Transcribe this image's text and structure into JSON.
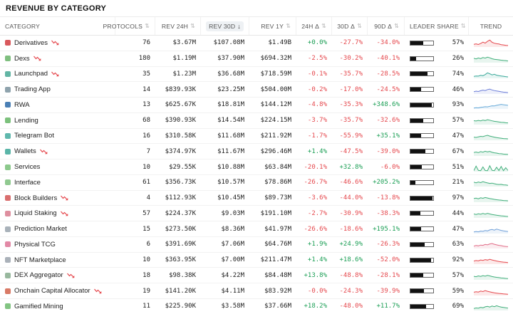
{
  "title": "REVENUE BY CATEGORY",
  "colors": {
    "positive": "#1a9e54",
    "negative": "#e5484d",
    "leader_fill": "#111111"
  },
  "icons": {
    "sort": "⇅",
    "sort_active": "↓",
    "trend_down_badge": "red-zigzag-down-arrow"
  },
  "table": {
    "columns": [
      {
        "label": "CATEGORY",
        "sort": "none"
      },
      {
        "label": "PROTOCOLS",
        "sort": "sortable"
      },
      {
        "label": "REV 24H",
        "sort": "sortable"
      },
      {
        "label": "REV 30D",
        "sort": "desc"
      },
      {
        "label": "REV 1Y",
        "sort": "sortable"
      },
      {
        "label": "24H Δ",
        "sort": "sortable"
      },
      {
        "label": "30D Δ",
        "sort": "sortable"
      },
      {
        "label": "90D Δ",
        "sort": "sortable"
      },
      {
        "label": "LEADER SHARE",
        "sort": "sortable"
      },
      {
        "label": "TREND",
        "sort": "none"
      }
    ],
    "rows": [
      {
        "category": "Derivatives",
        "down_badge": true,
        "icon_color": "#d9595c",
        "protocols": 76,
        "rev_24h": "$3.67M",
        "rev_30d": "$107.08M",
        "rev_1y": "$1.49B",
        "chg_24h": "+0.0%",
        "chg_30d": "-27.7%",
        "chg_90d": "-34.0%",
        "leader_share": 57,
        "trend_color": "#e5484d",
        "trend": [
          35,
          40,
          32,
          45,
          62,
          50,
          72,
          88,
          60,
          48,
          42,
          38,
          30,
          26,
          22,
          20
        ]
      },
      {
        "category": "Dexs",
        "down_badge": true,
        "icon_color": "#7fbf7f",
        "protocols": 180,
        "rev_24h": "$1.19M",
        "rev_30d": "$37.90M",
        "rev_1y": "$694.32M",
        "chg_24h": "-2.5%",
        "chg_30d": "-30.2%",
        "chg_90d": "-40.1%",
        "leader_share": 26,
        "trend_color": "#3fae7a",
        "trend": [
          55,
          48,
          60,
          52,
          65,
          58,
          70,
          62,
          50,
          44,
          40,
          36,
          32,
          28,
          26,
          22
        ]
      },
      {
        "category": "Launchpad",
        "down_badge": true,
        "icon_color": "#62b5a4",
        "protocols": 35,
        "rev_24h": "$1.23M",
        "rev_30d": "$36.68M",
        "rev_1y": "$718.59M",
        "chg_24h": "-0.1%",
        "chg_30d": "-35.7%",
        "chg_90d": "-28.5%",
        "leader_share": 74,
        "trend_color": "#3aa99a",
        "trend": [
          25,
          30,
          28,
          38,
          34,
          48,
          70,
          58,
          44,
          52,
          40,
          34,
          30,
          26,
          22,
          18
        ]
      },
      {
        "category": "Trading App",
        "down_badge": false,
        "icon_color": "#8fa3ad",
        "protocols": 14,
        "rev_24h": "$839.93K",
        "rev_30d": "$23.25M",
        "rev_1y": "$504.00M",
        "chg_24h": "-0.2%",
        "chg_30d": "-17.0%",
        "chg_90d": "-24.5%",
        "leader_share": 46,
        "trend_color": "#6e7fd8",
        "trend": [
          30,
          36,
          32,
          42,
          50,
          44,
          56,
          62,
          52,
          44,
          38,
          34,
          28,
          24,
          22,
          18
        ]
      },
      {
        "category": "RWA",
        "down_badge": false,
        "icon_color": "#4a7fb5",
        "protocols": 13,
        "rev_24h": "$625.67K",
        "rev_30d": "$18.81M",
        "rev_1y": "$144.12M",
        "chg_24h": "-4.8%",
        "chg_30d": "-35.3%",
        "chg_90d": "+348.6%",
        "leader_share": 93,
        "trend_color": "#64a8d8",
        "trend": [
          12,
          16,
          14,
          20,
          24,
          28,
          26,
          34,
          40,
          38,
          46,
          52,
          58,
          54,
          50,
          46
        ]
      },
      {
        "category": "Lending",
        "down_badge": false,
        "icon_color": "#7cc17c",
        "protocols": 68,
        "rev_24h": "$390.93K",
        "rev_30d": "$14.54M",
        "rev_1y": "$224.15M",
        "chg_24h": "-3.7%",
        "chg_30d": "-35.7%",
        "chg_90d": "-32.6%",
        "leader_share": 57,
        "trend_color": "#3fae7a",
        "trend": [
          50,
          46,
          54,
          48,
          58,
          52,
          62,
          56,
          48,
          42,
          38,
          34,
          30,
          28,
          24,
          22
        ]
      },
      {
        "category": "Telegram Bot",
        "down_badge": false,
        "icon_color": "#5fb8ad",
        "protocols": 16,
        "rev_24h": "$310.58K",
        "rev_30d": "$11.68M",
        "rev_1y": "$211.92M",
        "chg_24h": "-1.7%",
        "chg_30d": "-55.9%",
        "chg_90d": "+35.1%",
        "leader_share": 47,
        "trend_color": "#3fae7a",
        "trend": [
          40,
          36,
          44,
          50,
          46,
          56,
          64,
          54,
          46,
          40,
          34,
          30,
          26,
          22,
          20,
          18
        ]
      },
      {
        "category": "Wallets",
        "down_badge": true,
        "icon_color": "#5ab5a8",
        "protocols": 7,
        "rev_24h": "$374.97K",
        "rev_30d": "$11.67M",
        "rev_1y": "$296.46M",
        "chg_24h": "+1.4%",
        "chg_30d": "-47.5%",
        "chg_90d": "-39.0%",
        "leader_share": 67,
        "trend_color": "#3fae7a",
        "trend": [
          45,
          50,
          42,
          55,
          48,
          60,
          52,
          58,
          46,
          40,
          36,
          30,
          28,
          24,
          22,
          20
        ]
      },
      {
        "category": "Services",
        "down_badge": false,
        "icon_color": "#8cc98c",
        "protocols": 10,
        "rev_24h": "$29.55K",
        "rev_30d": "$10.88M",
        "rev_1y": "$63.84M",
        "chg_24h": "-20.1%",
        "chg_30d": "+32.8%",
        "chg_90d": "-6.0%",
        "leader_share": 51,
        "trend_color": "#3fae7a",
        "trend": [
          12,
          70,
          15,
          12,
          60,
          14,
          12,
          75,
          16,
          12,
          55,
          14,
          65,
          12,
          50,
          14
        ]
      },
      {
        "category": "Interface",
        "down_badge": false,
        "icon_color": "#90c990",
        "protocols": 61,
        "rev_24h": "$356.73K",
        "rev_30d": "$10.57M",
        "rev_1y": "$78.86M",
        "chg_24h": "-26.7%",
        "chg_30d": "-46.6%",
        "chg_90d": "+205.2%",
        "leader_share": 21,
        "trend_color": "#3fae7a",
        "trend": [
          55,
          48,
          58,
          50,
          62,
          54,
          46,
          40,
          44,
          36,
          30,
          26,
          28,
          22,
          20,
          16
        ]
      },
      {
        "category": "Block Builders",
        "down_badge": true,
        "icon_color": "#d96e6e",
        "protocols": 4,
        "rev_24h": "$112.93K",
        "rev_30d": "$10.45M",
        "rev_1y": "$89.73M",
        "chg_24h": "-3.6%",
        "chg_30d": "-44.0%",
        "chg_90d": "-13.8%",
        "leader_share": 97,
        "trend_color": "#3fae7a",
        "trend": [
          48,
          52,
          44,
          56,
          50,
          60,
          54,
          46,
          42,
          36,
          32,
          28,
          26,
          22,
          20,
          18
        ]
      },
      {
        "category": "Liquid Staking",
        "down_badge": true,
        "icon_color": "#de8f9f",
        "protocols": 57,
        "rev_24h": "$224.37K",
        "rev_30d": "$9.03M",
        "rev_1y": "$191.10M",
        "chg_24h": "-2.7%",
        "chg_30d": "-30.9%",
        "chg_90d": "-38.3%",
        "leader_share": 44,
        "trend_color": "#3fae7a",
        "trend": [
          50,
          44,
          52,
          46,
          56,
          48,
          58,
          50,
          44,
          38,
          34,
          30,
          26,
          24,
          20,
          18
        ]
      },
      {
        "category": "Prediction Market",
        "down_badge": false,
        "icon_color": "#a9b2ba",
        "protocols": 15,
        "rev_24h": "$273.50K",
        "rev_30d": "$8.36M",
        "rev_1y": "$41.97M",
        "chg_24h": "-26.6%",
        "chg_30d": "-18.6%",
        "chg_90d": "+195.1%",
        "leader_share": 47,
        "trend_color": "#6e9fd8",
        "trend": [
          20,
          26,
          22,
          32,
          28,
          38,
          34,
          46,
          52,
          44,
          56,
          48,
          40,
          34,
          30,
          26
        ]
      },
      {
        "category": "Physical TCG",
        "down_badge": false,
        "icon_color": "#e289a6",
        "protocols": 6,
        "rev_24h": "$391.69K",
        "rev_30d": "$7.06M",
        "rev_1y": "$64.76M",
        "chg_24h": "+1.9%",
        "chg_30d": "+24.9%",
        "chg_90d": "-26.3%",
        "leader_share": 63,
        "trend_color": "#e06a86",
        "trend": [
          30,
          38,
          34,
          44,
          40,
          52,
          46,
          58,
          64,
          54,
          46,
          40,
          36,
          30,
          26,
          24
        ]
      },
      {
        "category": "NFT Marketplace",
        "down_badge": false,
        "icon_color": "#aab1b9",
        "protocols": 10,
        "rev_24h": "$363.95K",
        "rev_30d": "$7.00M",
        "rev_1y": "$211.47M",
        "chg_24h": "+1.4%",
        "chg_30d": "+18.6%",
        "chg_90d": "-52.0%",
        "leader_share": 92,
        "trend_color": "#e5484d",
        "trend": [
          40,
          46,
          42,
          54,
          48,
          58,
          52,
          62,
          54,
          46,
          40,
          34,
          30,
          26,
          24,
          20
        ]
      },
      {
        "category": "DEX Aggregator",
        "down_badge": true,
        "icon_color": "#98b89e",
        "protocols": 18,
        "rev_24h": "$98.38K",
        "rev_30d": "$4.22M",
        "rev_1y": "$84.48M",
        "chg_24h": "+13.8%",
        "chg_30d": "-48.8%",
        "chg_90d": "-28.1%",
        "leader_share": 57,
        "trend_color": "#3fae7a",
        "trend": [
          45,
          40,
          50,
          44,
          54,
          46,
          56,
          50,
          42,
          36,
          32,
          28,
          24,
          22,
          18,
          16
        ]
      },
      {
        "category": "Onchain Capital Allocator",
        "down_badge": true,
        "icon_color": "#d97a66",
        "protocols": 19,
        "rev_24h": "$141.20K",
        "rev_30d": "$4.11M",
        "rev_1y": "$83.92M",
        "chg_24h": "-0.0%",
        "chg_30d": "-24.3%",
        "chg_90d": "-39.9%",
        "leader_share": 59,
        "trend_color": "#e5484d",
        "trend": [
          42,
          48,
          44,
          56,
          50,
          62,
          54,
          46,
          40,
          34,
          30,
          26,
          24,
          20,
          18,
          16
        ]
      },
      {
        "category": "Gamified Mining",
        "down_badge": false,
        "icon_color": "#82c482",
        "protocols": 11,
        "rev_24h": "$225.90K",
        "rev_30d": "$3.58M",
        "rev_1y": "$37.66M",
        "chg_24h": "+18.2%",
        "chg_30d": "-48.0%",
        "chg_90d": "+11.7%",
        "leader_share": 69,
        "trend_color": "#3fae7a",
        "trend": [
          25,
          32,
          28,
          40,
          34,
          46,
          52,
          44,
          56,
          48,
          60,
          50,
          44,
          38,
          34,
          30
        ]
      }
    ]
  }
}
